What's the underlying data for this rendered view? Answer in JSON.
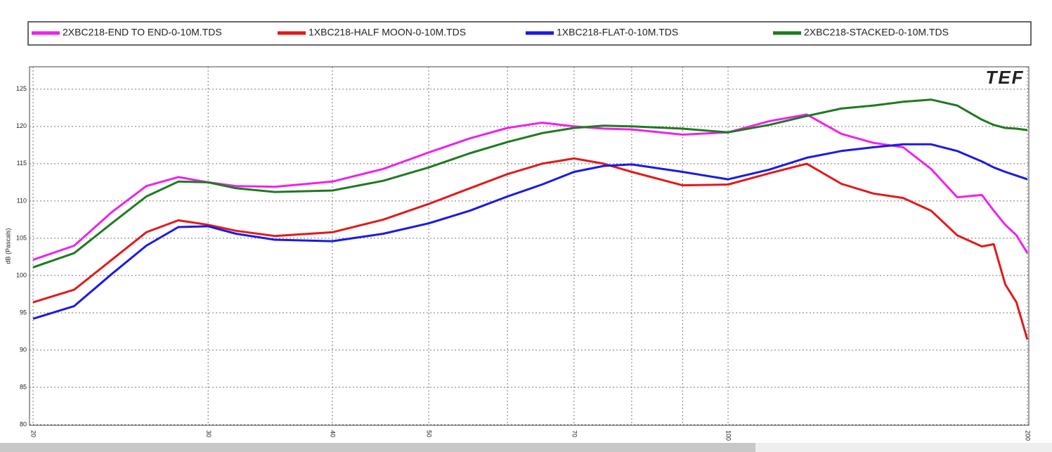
{
  "chart_data": {
    "type": "line",
    "log_x": true,
    "logo": "TEF",
    "y_label": "dB (Pascals)",
    "x": [
      20,
      22,
      24,
      26,
      28,
      30,
      32,
      35,
      40,
      45,
      50,
      55,
      60,
      65,
      70,
      75,
      80,
      90,
      100,
      110,
      120,
      130,
      140,
      150,
      160,
      170,
      180,
      185,
      190,
      195,
      200
    ],
    "xlim": [
      20,
      200
    ],
    "ylim": [
      80,
      128
    ],
    "xticks": [
      20,
      30,
      40,
      50,
      70,
      100,
      200
    ],
    "x_minor_gridlines": [
      60,
      80,
      90
    ],
    "yticks": [
      80,
      85,
      90,
      95,
      100,
      105,
      110,
      115,
      120,
      125
    ],
    "grid": true,
    "series": [
      {
        "name": "2XBC218-END TO END-0-10M.TDS",
        "color": "#ee22ee",
        "values": [
          102.1,
          104,
          108.5,
          112,
          113.2,
          112.5,
          112,
          111.9,
          112.6,
          114.3,
          116.5,
          118.4,
          119.8,
          120.5,
          120,
          119.7,
          119.6,
          118.9,
          119.2,
          120.7,
          121.6,
          119,
          117.8,
          117.2,
          114.3,
          110.5,
          110.8,
          108.7,
          106.8,
          105.4,
          103
        ]
      },
      {
        "name": "1XBC218-HALF MOON-0-10M.TDS",
        "color": "#e21a1a",
        "values": [
          96.4,
          98.1,
          102.1,
          105.8,
          107.4,
          106.8,
          106,
          105.3,
          105.8,
          107.5,
          109.6,
          111.7,
          113.6,
          115,
          115.7,
          115,
          113.9,
          112.1,
          112.2,
          113.7,
          115,
          112.3,
          111,
          110.4,
          108.7,
          105.4,
          103.9,
          104.2,
          98.8,
          96.4,
          91.4
        ]
      },
      {
        "name": "1XBC218-FLAT-0-10M.TDS",
        "color": "#1a1ae6",
        "values": [
          94.2,
          95.9,
          100.2,
          104,
          106.5,
          106.6,
          105.6,
          104.8,
          104.6,
          105.6,
          107,
          108.7,
          110.6,
          112.2,
          113.9,
          114.7,
          114.9,
          113.9,
          112.9,
          114.2,
          115.8,
          116.7,
          117.2,
          117.6,
          117.6,
          116.7,
          115.3,
          114.5,
          113.9,
          113.4,
          112.9
        ]
      },
      {
        "name": "2XBC218-STACKED-0-10M.TDS",
        "color": "#1f7a1f",
        "values": [
          101.1,
          103,
          107,
          110.6,
          112.6,
          112.5,
          111.7,
          111.2,
          111.4,
          112.7,
          114.5,
          116.4,
          117.9,
          119.1,
          119.8,
          120.1,
          120,
          119.7,
          119.2,
          120.2,
          121.4,
          122.4,
          122.8,
          123.3,
          123.6,
          122.8,
          120.9,
          120.2,
          119.8,
          119.7,
          119.5
        ]
      }
    ]
  }
}
